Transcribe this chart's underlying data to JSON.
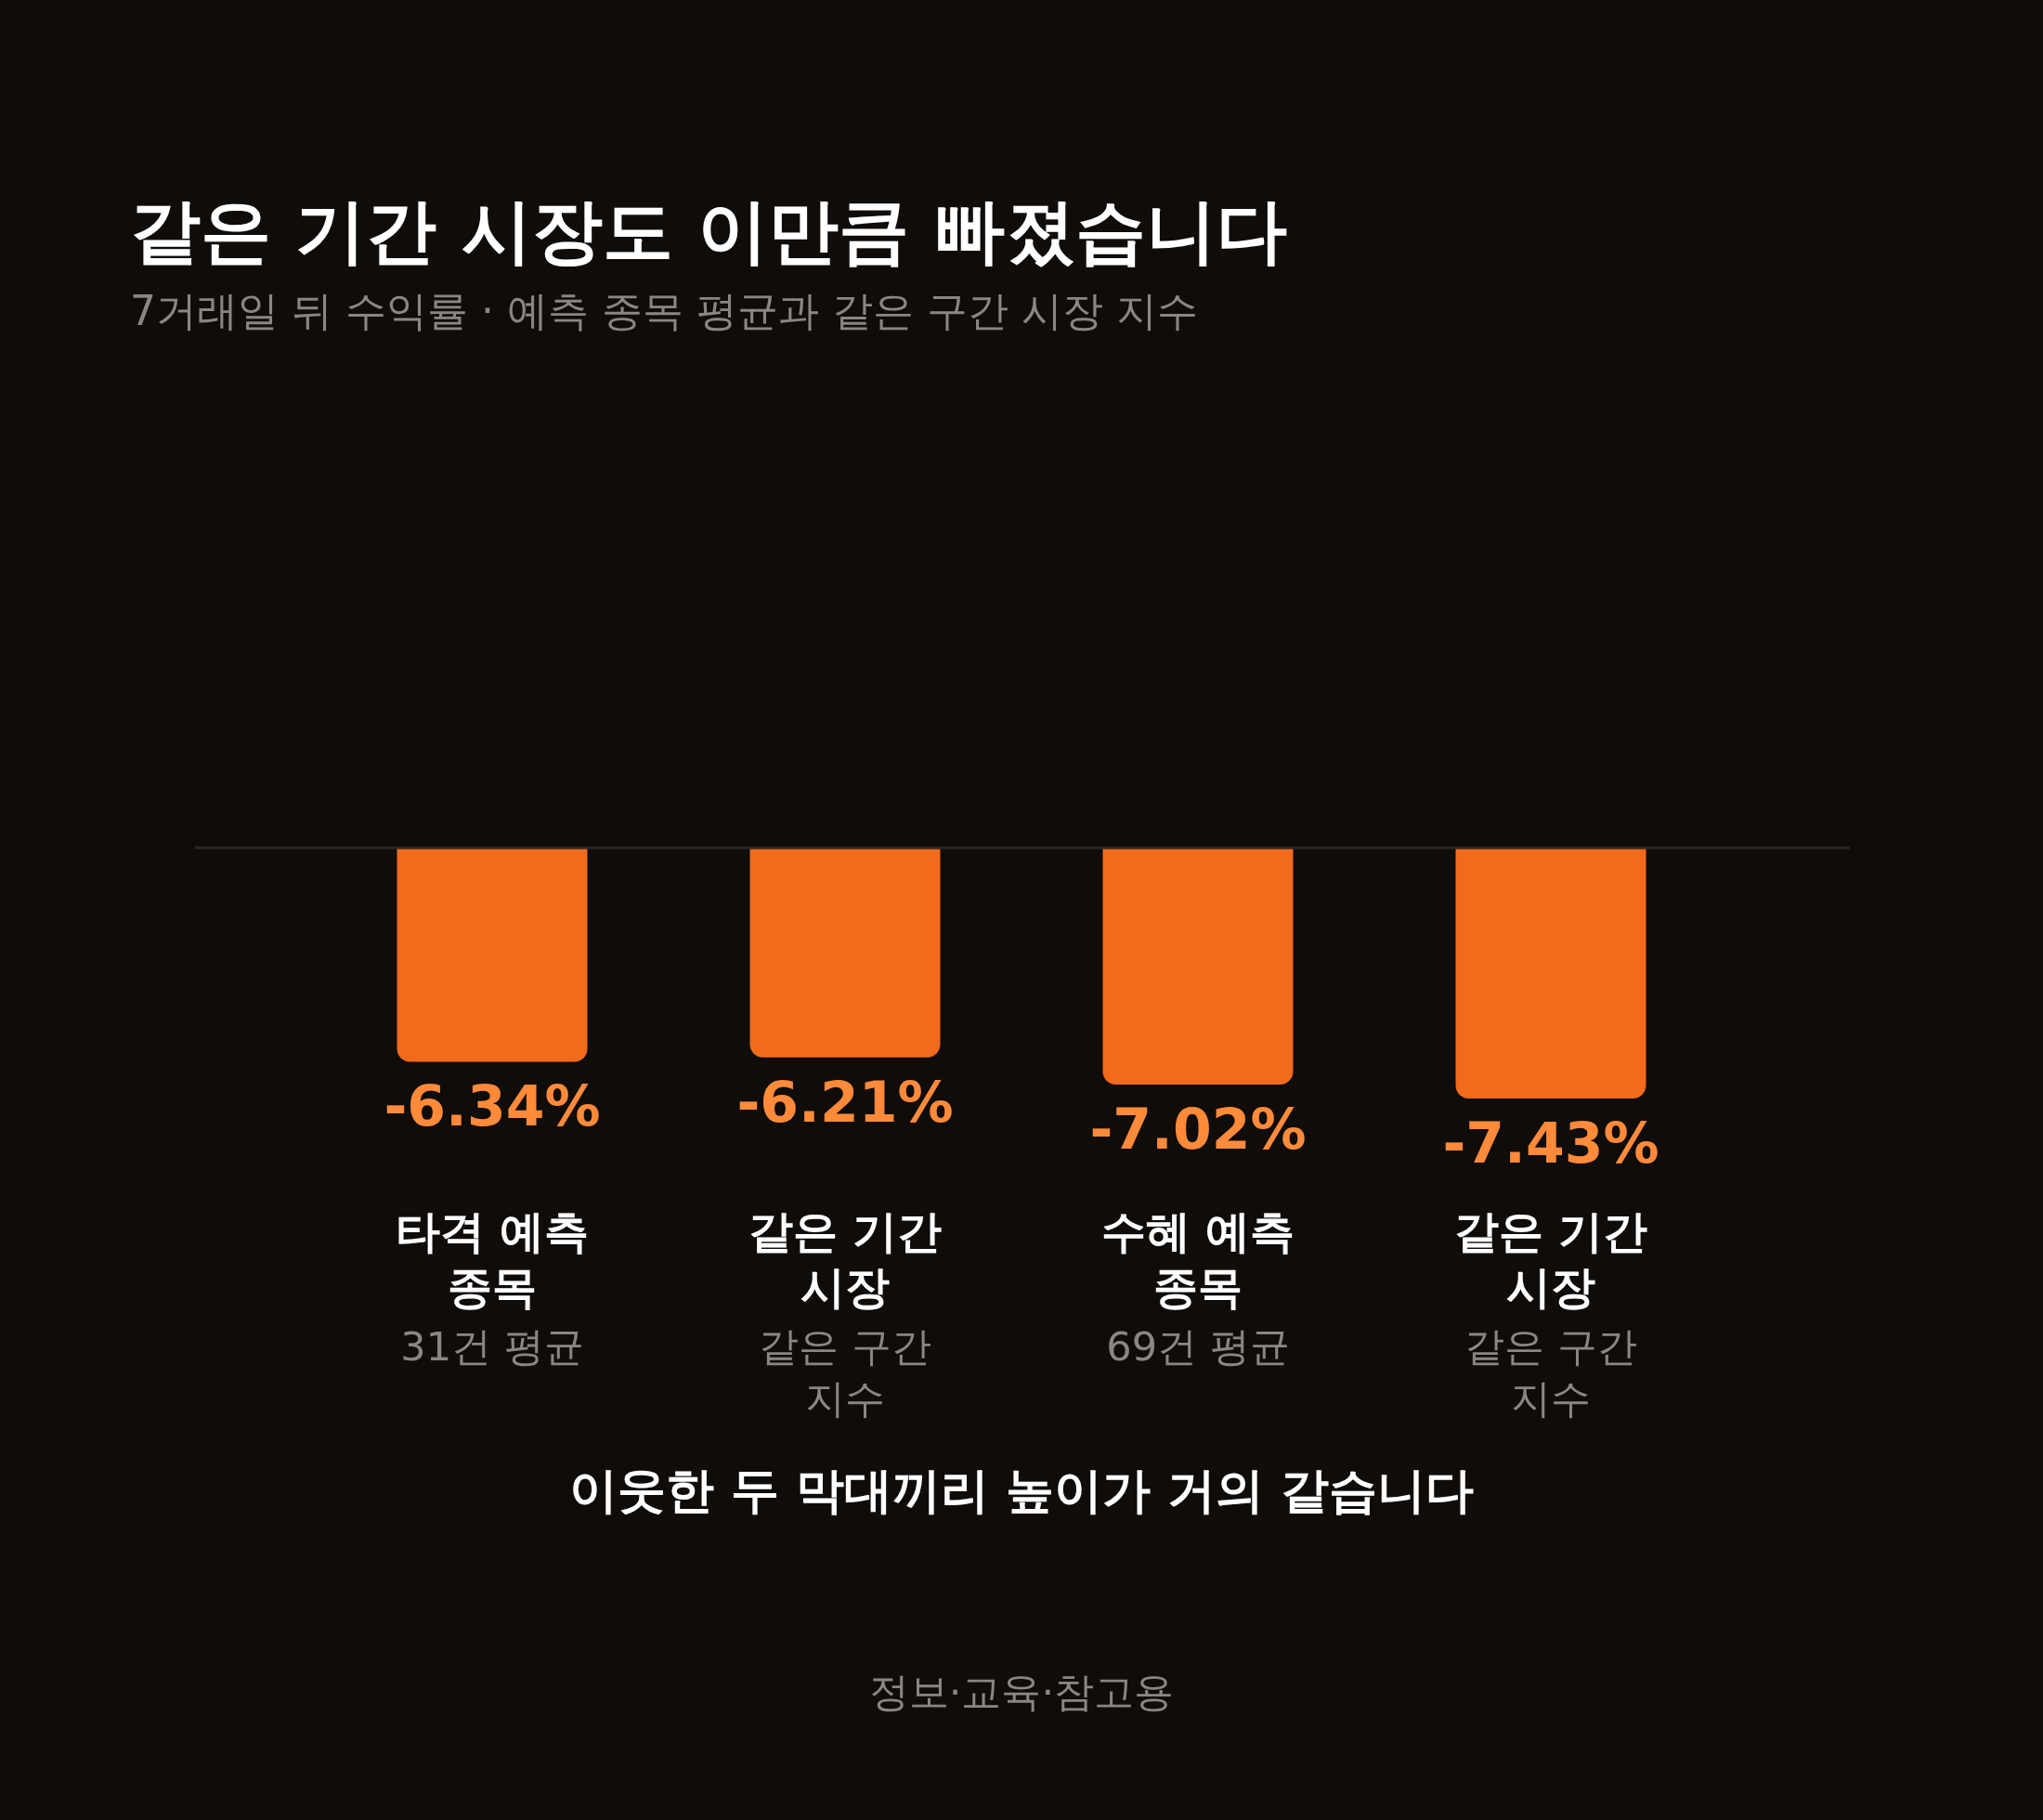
{
  "chart_data": {
    "type": "bar",
    "title": "같은 기간 시장도 이만큼 빠졌습니다",
    "subtitle": "7거래일 뒤 수익률 · 예측 종목 평균과 같은 구간 시장 지수",
    "categories": [
      "타격 예측\n종목",
      "같은 기간\n시장",
      "수혜 예측\n종목",
      "같은 기간\n시장"
    ],
    "values": [
      -6.34,
      -6.21,
      -7.02,
      -7.43
    ],
    "value_labels": [
      "-6.34%",
      "-6.21%",
      "-7.02%",
      "-7.43%"
    ],
    "color": "#f26a1c",
    "annotations": [
      "31건 평균",
      "같은 구간\n지수",
      "69건 평균",
      "같은 구간\n지수",
      "이웃한 두 막대끼리 높이가 거의 같습니다",
      "정보·교육·참고용"
    ]
  }
}
